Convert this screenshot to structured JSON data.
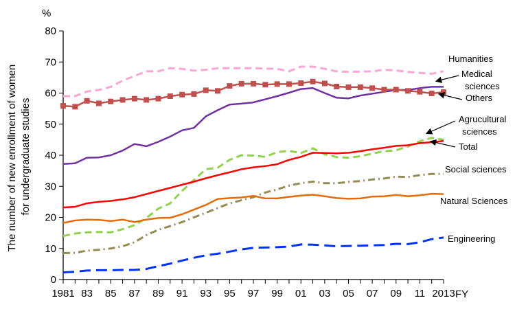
{
  "chart_data": {
    "type": "line",
    "title": "",
    "y_unit": "%",
    "ylabel": "The number of new enrollment of women for undergraduate studies",
    "xlabel": "FY",
    "ylim": [
      0,
      80
    ],
    "y_ticks": [
      0,
      10,
      20,
      30,
      40,
      50,
      60,
      70,
      80
    ],
    "x_range": [
      1981,
      2013
    ],
    "x_ticks": [
      {
        "year": 1981,
        "label": "1981"
      },
      {
        "year": 1983,
        "label": "83"
      },
      {
        "year": 1985,
        "label": "85"
      },
      {
        "year": 1987,
        "label": "87"
      },
      {
        "year": 1989,
        "label": "89"
      },
      {
        "year": 1991,
        "label": "91"
      },
      {
        "year": 1993,
        "label": "93"
      },
      {
        "year": 1995,
        "label": "95"
      },
      {
        "year": 1997,
        "label": "97"
      },
      {
        "year": 1999,
        "label": "99"
      },
      {
        "year": 2001,
        "label": "01"
      },
      {
        "year": 2003,
        "label": "03"
      },
      {
        "year": 2005,
        "label": "05"
      },
      {
        "year": 2007,
        "label": "07"
      },
      {
        "year": 2009,
        "label": "09"
      },
      {
        "year": 2011,
        "label": "11"
      },
      {
        "year": 2013,
        "label": "2013"
      }
    ],
    "grid": false,
    "legend": "inline labels at right",
    "x": [
      1981,
      1982,
      1983,
      1984,
      1985,
      1986,
      1987,
      1988,
      1989,
      1990,
      1991,
      1992,
      1993,
      1994,
      1995,
      1996,
      1997,
      1998,
      1999,
      2000,
      2001,
      2002,
      2003,
      2004,
      2005,
      2006,
      2007,
      2008,
      2009,
      2010,
      2011,
      2012,
      2013
    ],
    "series": [
      {
        "name": "Humanities",
        "color": "#f7a6d6",
        "style": "dash",
        "values": [
          59.0,
          59.0,
          60.5,
          61.0,
          62.0,
          64.0,
          65.5,
          67.0,
          67.0,
          68.0,
          67.8,
          67.2,
          67.5,
          68.0,
          68.0,
          68.0,
          68.0,
          67.9,
          67.8,
          67.0,
          68.5,
          68.5,
          67.8,
          67.0,
          66.8,
          66.9,
          67.0,
          67.5,
          67.3,
          66.8,
          66.5,
          66.2,
          67.0
        ]
      },
      {
        "name": "Medical sciences",
        "color": "#7030a0",
        "style": "solid",
        "values": [
          37.2,
          37.4,
          39.2,
          39.3,
          40.0,
          41.5,
          43.6,
          42.9,
          44.3,
          46.0,
          48.0,
          48.8,
          52.5,
          54.5,
          56.3,
          56.6,
          57.0,
          58.0,
          59.0,
          60.1,
          61.3,
          61.6,
          60.0,
          58.5,
          58.3,
          59.2,
          59.8,
          60.4,
          61.0,
          61.0,
          61.6,
          62.0,
          62.0
        ]
      },
      {
        "name": "Others",
        "color": "#c0504d",
        "style": "solid-square",
        "values": [
          55.9,
          55.6,
          57.5,
          56.7,
          57.3,
          57.8,
          58.2,
          57.8,
          58.2,
          59.0,
          59.5,
          59.7,
          60.9,
          60.7,
          62.3,
          63.0,
          63.0,
          62.7,
          62.9,
          62.9,
          63.2,
          63.7,
          63.1,
          62.1,
          61.9,
          61.9,
          61.6,
          61.1,
          61.1,
          60.7,
          60.4,
          59.9,
          60.3
        ]
      },
      {
        "name": "Agrucultural sciences",
        "color": "#92d050",
        "style": "dash",
        "values": [
          14.0,
          14.8,
          15.2,
          15.3,
          15.2,
          16.2,
          17.5,
          19.8,
          22.8,
          24.5,
          28.5,
          32.0,
          35.5,
          36.0,
          38.5,
          40.0,
          39.9,
          39.5,
          41.0,
          41.4,
          40.7,
          42.2,
          40.3,
          39.4,
          39.2,
          39.7,
          40.5,
          41.3,
          41.6,
          42.8,
          44.5,
          45.6,
          45.0
        ]
      },
      {
        "name": "Total",
        "color": "#ff0000",
        "style": "solid",
        "values": [
          23.2,
          23.4,
          24.5,
          25.0,
          25.3,
          25.8,
          26.5,
          27.5,
          28.5,
          29.5,
          30.5,
          31.5,
          32.6,
          33.6,
          34.5,
          35.5,
          36.1,
          36.5,
          37.1,
          38.5,
          39.5,
          40.8,
          40.7,
          40.6,
          40.8,
          41.3,
          41.9,
          42.4,
          43.0,
          43.2,
          43.9,
          44.2,
          44.6
        ]
      },
      {
        "name": "Social sciences",
        "color": "#948a54",
        "style": "dash-dot",
        "values": [
          8.5,
          8.6,
          9.3,
          9.6,
          10.0,
          10.7,
          12.0,
          14.3,
          16.0,
          17.2,
          18.5,
          20.0,
          21.5,
          23.0,
          24.5,
          25.5,
          26.5,
          28.0,
          29.0,
          30.2,
          31.0,
          31.5,
          31.0,
          31.0,
          31.4,
          31.7,
          32.2,
          32.5,
          33.1,
          33.0,
          33.6,
          34.0,
          34.0
        ]
      },
      {
        "name": "Natural Sciences",
        "color": "#e36c09",
        "style": "solid",
        "values": [
          18.2,
          19.0,
          19.3,
          19.2,
          18.8,
          19.3,
          18.5,
          19.3,
          19.8,
          19.9,
          21.0,
          22.5,
          24.0,
          25.9,
          26.2,
          26.4,
          26.9,
          26.1,
          26.1,
          26.6,
          27.0,
          27.3,
          26.8,
          26.2,
          26.0,
          26.1,
          26.7,
          26.8,
          27.2,
          26.8,
          27.1,
          27.6,
          27.5
        ]
      },
      {
        "name": "Engineering",
        "color": "#0033ff",
        "style": "long-dash",
        "values": [
          2.3,
          2.5,
          2.9,
          3.0,
          3.0,
          3.1,
          3.1,
          3.4,
          4.3,
          5.1,
          6.1,
          7.0,
          7.8,
          8.3,
          9.0,
          9.7,
          10.2,
          10.3,
          10.4,
          10.6,
          11.3,
          11.2,
          11.0,
          10.7,
          10.8,
          10.9,
          11.0,
          11.1,
          11.5,
          11.4,
          12.0,
          13.0,
          13.5
        ]
      }
    ]
  }
}
